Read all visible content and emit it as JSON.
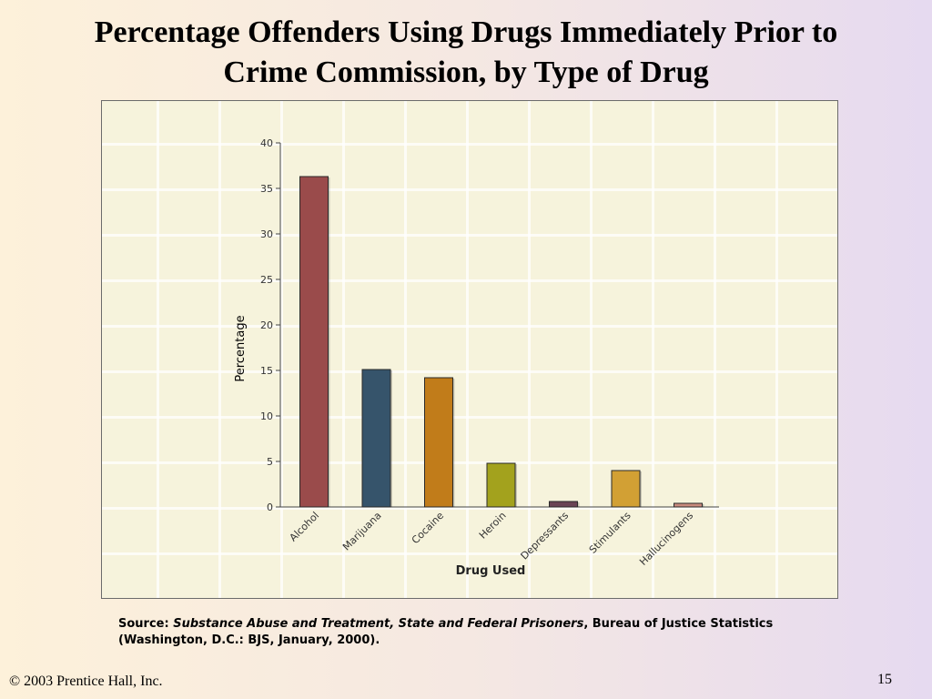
{
  "slide": {
    "title_line1": "Percentage Offenders Using Drugs Immediately Prior to",
    "title_line2": "Crime Commission, by Type of Drug",
    "source_label": "Source:",
    "source_title": "Substance Abuse and Treatment, State and Federal Prisoners",
    "source_rest": ", Bureau of Justice Statistics (Washington, D.C.: BJS, January, 2000).",
    "copyright": "© 2003  Prentice Hall, Inc.",
    "page_number": "15"
  },
  "chart_data": {
    "type": "bar",
    "title": "",
    "xlabel": "Drug Used",
    "ylabel": "Percentage",
    "ylim": [
      0,
      40
    ],
    "yticks": [
      0,
      5,
      10,
      15,
      20,
      25,
      30,
      35,
      40
    ],
    "categories": [
      "Alcohol",
      "Marijuana",
      "Cocaine",
      "Heroin",
      "Depressants",
      "Stimulants",
      "Hallucinogens"
    ],
    "values": [
      36.3,
      15.1,
      14.2,
      4.8,
      0.6,
      4.0,
      0.4
    ],
    "colors": [
      "#9a4b4b",
      "#36546b",
      "#c17c1a",
      "#a3a21d",
      "#6a4355",
      "#d2a034",
      "#c98a7e"
    ],
    "grid": true,
    "legend": "none"
  }
}
